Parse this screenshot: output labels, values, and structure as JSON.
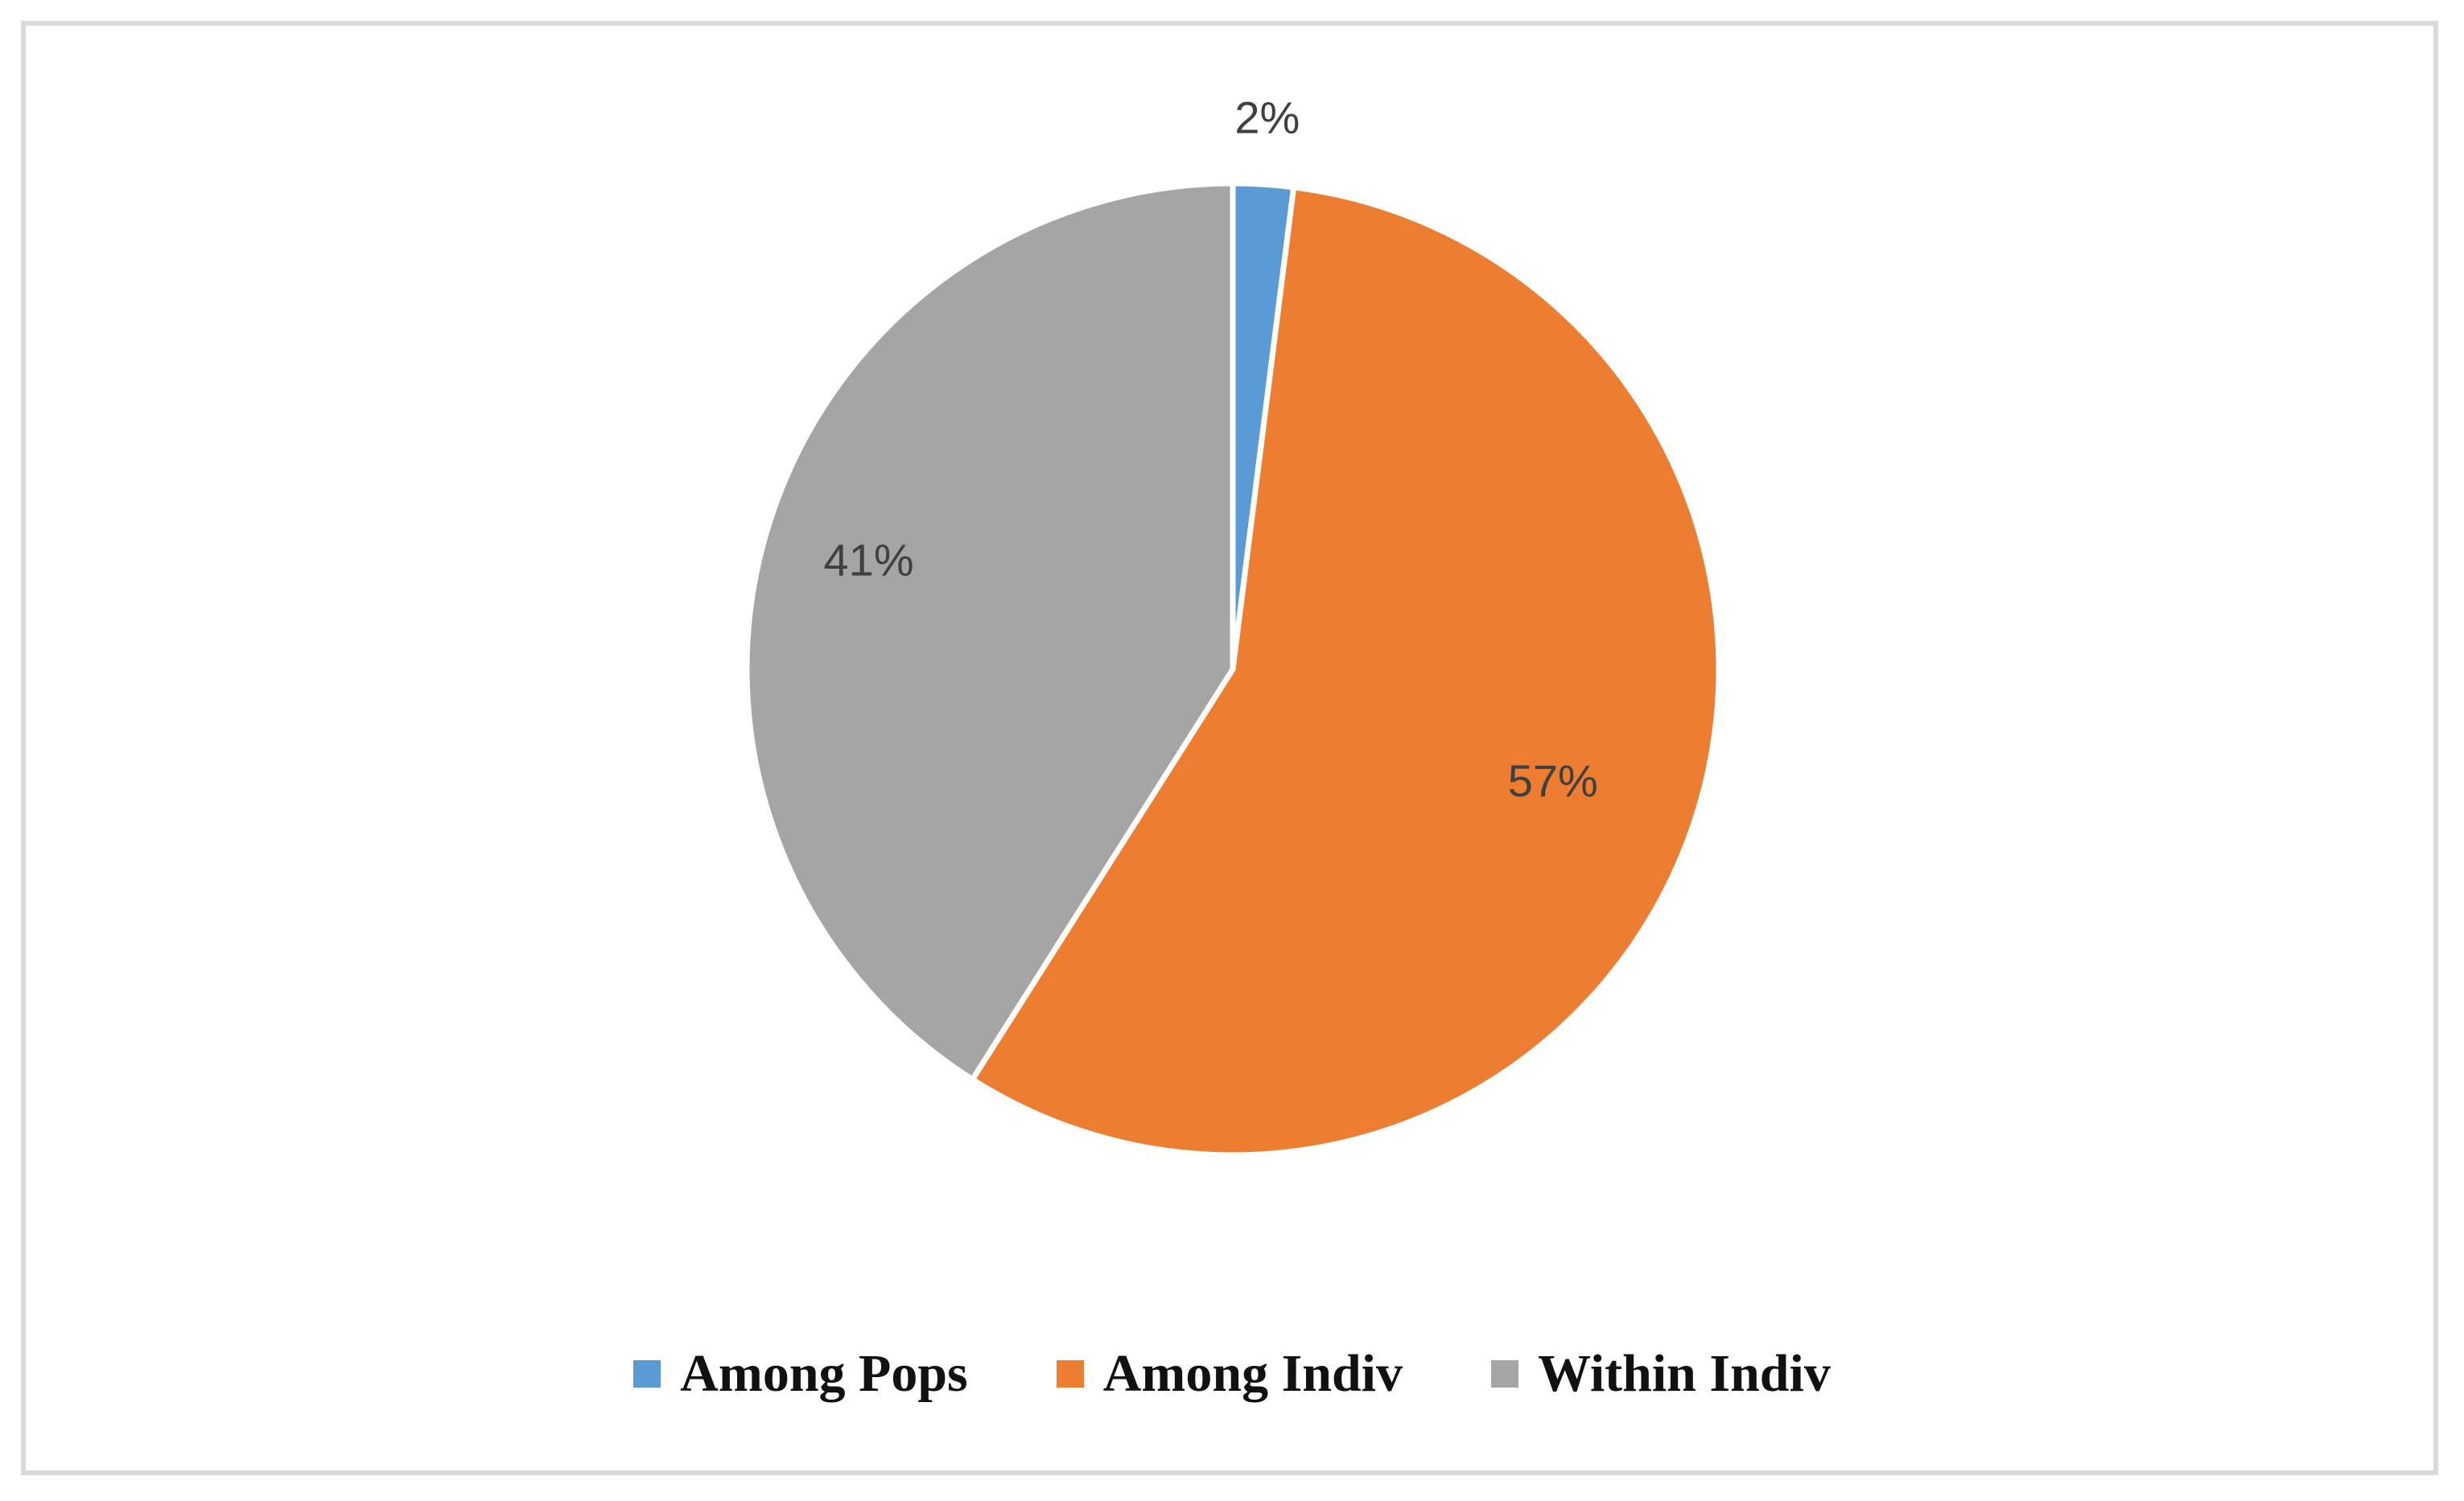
{
  "chart_data": {
    "type": "pie",
    "title": "",
    "categories": [
      "Among Pops",
      "Among Indiv",
      "Within Indiv"
    ],
    "values": [
      2,
      57,
      41
    ],
    "labels": [
      "2%",
      "57%",
      "41%"
    ],
    "colors": [
      "#5b9bd5",
      "#ed7d31",
      "#a5a5a5"
    ],
    "legend": {
      "placement": "bottom",
      "entries": [
        "Among Pops",
        "Among Indiv",
        "Within Indiv"
      ]
    }
  }
}
